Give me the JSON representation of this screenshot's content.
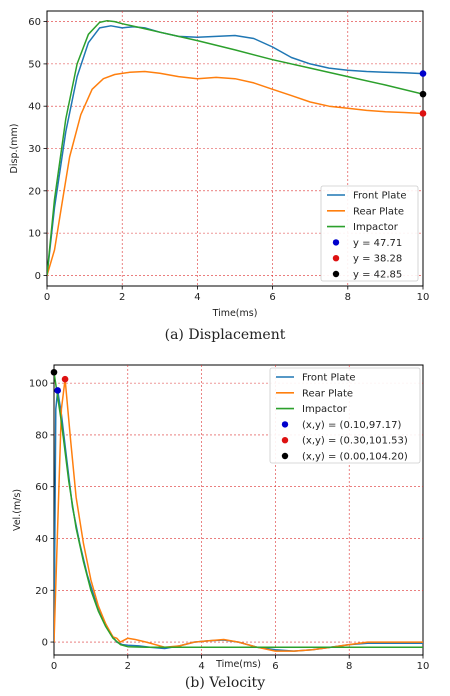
{
  "chart_data": [
    {
      "type": "line",
      "xlabel": "Time(ms)",
      "ylabel": "Disp.(mm)",
      "caption": "(a)  Displacement",
      "xlim": [
        0,
        10
      ],
      "ylim": [
        -2.5,
        62.5
      ],
      "xticks": [
        "0",
        "2",
        "4",
        "6",
        "8",
        "10"
      ],
      "yticks": [
        "0",
        "10",
        "20",
        "30",
        "40",
        "50",
        "60"
      ],
      "grid": true,
      "legend_position": "bottom-right",
      "series": [
        {
          "name": "Front Plate",
          "color": "#1f77b4",
          "x": [
            0,
            0.2,
            0.5,
            0.8,
            1.1,
            1.4,
            1.7,
            2.0,
            2.3,
            2.6,
            3.0,
            3.5,
            4.0,
            4.5,
            5.0,
            5.5,
            6.0,
            6.5,
            7.0,
            7.5,
            8.0,
            8.5,
            9.0,
            9.5,
            10.0
          ],
          "y": [
            0,
            16,
            34,
            47,
            55,
            58.5,
            59,
            58.5,
            58.8,
            58.5,
            57.5,
            56.5,
            56.3,
            56.5,
            56.7,
            56,
            54,
            51.5,
            50,
            49,
            48.5,
            48.2,
            48,
            47.9,
            47.71
          ]
        },
        {
          "name": "Rear Plate",
          "color": "#ff7f0e",
          "x": [
            0,
            0.2,
            0.4,
            0.6,
            0.9,
            1.2,
            1.5,
            1.8,
            2.2,
            2.6,
            3.0,
            3.5,
            4.0,
            4.5,
            5.0,
            5.5,
            6.0,
            6.5,
            7.0,
            7.5,
            8.0,
            8.5,
            9.0,
            9.5,
            10.0
          ],
          "y": [
            0,
            6,
            17,
            28,
            38,
            44,
            46.5,
            47.5,
            48,
            48.2,
            47.8,
            47,
            46.5,
            46.8,
            46.5,
            45.5,
            44,
            42.5,
            41,
            40,
            39.5,
            39,
            38.7,
            38.5,
            38.28
          ]
        },
        {
          "name": "Impactor",
          "color": "#2ca02c",
          "x": [
            0,
            0.2,
            0.5,
            0.8,
            1.1,
            1.4,
            1.6,
            1.8,
            2.0,
            2.5,
            3.0,
            4.0,
            5.0,
            6.0,
            7.0,
            8.0,
            9.0,
            10.0
          ],
          "y": [
            0,
            18,
            37,
            50,
            57,
            59.8,
            60.2,
            60,
            59.5,
            58.5,
            57.5,
            55.5,
            53.3,
            51,
            49,
            47,
            45,
            42.85
          ]
        }
      ],
      "markers": [
        {
          "label": "y = 47.71",
          "x": 10,
          "y": 47.71,
          "color": "#0000cc"
        },
        {
          "label": "y = 38.28",
          "x": 10,
          "y": 38.28,
          "color": "#dd1111"
        },
        {
          "label": "y = 42.85",
          "x": 10,
          "y": 42.85,
          "color": "#000000"
        }
      ]
    },
    {
      "type": "line",
      "xlabel": "Time(ms)",
      "ylabel": "Vel.(m/s)",
      "caption": "(b)  Velocity",
      "xlim": [
        0,
        10
      ],
      "ylim": [
        -5,
        107
      ],
      "xticks": [
        "0",
        "2",
        "4",
        "6",
        "8",
        "10"
      ],
      "yticks": [
        "0",
        "20",
        "40",
        "60",
        "80",
        "100"
      ],
      "grid": true,
      "legend_position": "top-right",
      "series": [
        {
          "name": "Front Plate",
          "color": "#1f77b4",
          "x": [
            0,
            0.05,
            0.1,
            0.2,
            0.35,
            0.5,
            0.7,
            0.9,
            1.1,
            1.3,
            1.5,
            1.7,
            1.85,
            2.0,
            2.3,
            2.6,
            3.0,
            3.4,
            3.8,
            4.2,
            4.6,
            5.0,
            5.5,
            6.0,
            6.5,
            7.0,
            7.5,
            8.0,
            8.5,
            9.0,
            9.5,
            10.0
          ],
          "y": [
            0,
            90,
            97.17,
            88,
            70,
            52,
            38,
            26,
            17,
            10,
            4,
            0,
            -1,
            -1.2,
            -1.5,
            -2,
            -2.5,
            -1.5,
            0,
            0.5,
            0.8,
            0,
            -2,
            -3,
            -3.5,
            -3,
            -2,
            -1,
            -0.5,
            -0.5,
            -0.5,
            -0.5
          ]
        },
        {
          "name": "Rear  Plate",
          "color": "#ff7f0e",
          "x": [
            0,
            0.1,
            0.2,
            0.3,
            0.45,
            0.6,
            0.8,
            1.0,
            1.2,
            1.4,
            1.6,
            1.7,
            1.8,
            2.0,
            2.2,
            2.5,
            3.0,
            3.4,
            3.8,
            4.2,
            4.6,
            5.0,
            5.5,
            6.0,
            6.5,
            7.0,
            7.5,
            8.0,
            8.5,
            9.0,
            9.5,
            10.0
          ],
          "y": [
            0,
            45,
            90,
            101.53,
            78,
            56,
            38,
            24,
            14,
            7,
            2,
            1.5,
            0,
            1.5,
            1,
            0,
            -2,
            -1.5,
            0,
            0.5,
            1,
            0,
            -2,
            -3.5,
            -3.5,
            -3,
            -2,
            -1,
            0,
            0,
            0,
            0
          ]
        },
        {
          "name": "Impactor",
          "color": "#2ca02c",
          "x": [
            0,
            0.2,
            0.4,
            0.6,
            0.8,
            1.0,
            1.2,
            1.4,
            1.6,
            1.8,
            2.0,
            2.5,
            3.0,
            4.0,
            5.0,
            6.0,
            7.0,
            8.0,
            9.0,
            10.0
          ],
          "y": [
            104.2,
            85,
            62,
            44,
            31,
            20,
            12,
            6,
            1.5,
            -1,
            -1.8,
            -2,
            -2,
            -2,
            -2,
            -2,
            -2,
            -2,
            -2,
            -2
          ]
        }
      ],
      "markers": [
        {
          "label": "(x,y) = (0.10,97.17)",
          "x": 0.1,
          "y": 97.17,
          "color": "#0000cc"
        },
        {
          "label": "(x,y) = (0.30,101.53)",
          "x": 0.3,
          "y": 101.53,
          "color": "#dd1111"
        },
        {
          "label": "(x,y) = (0.00,104.20)",
          "x": 0.0,
          "y": 104.2,
          "color": "#000000"
        }
      ]
    }
  ]
}
